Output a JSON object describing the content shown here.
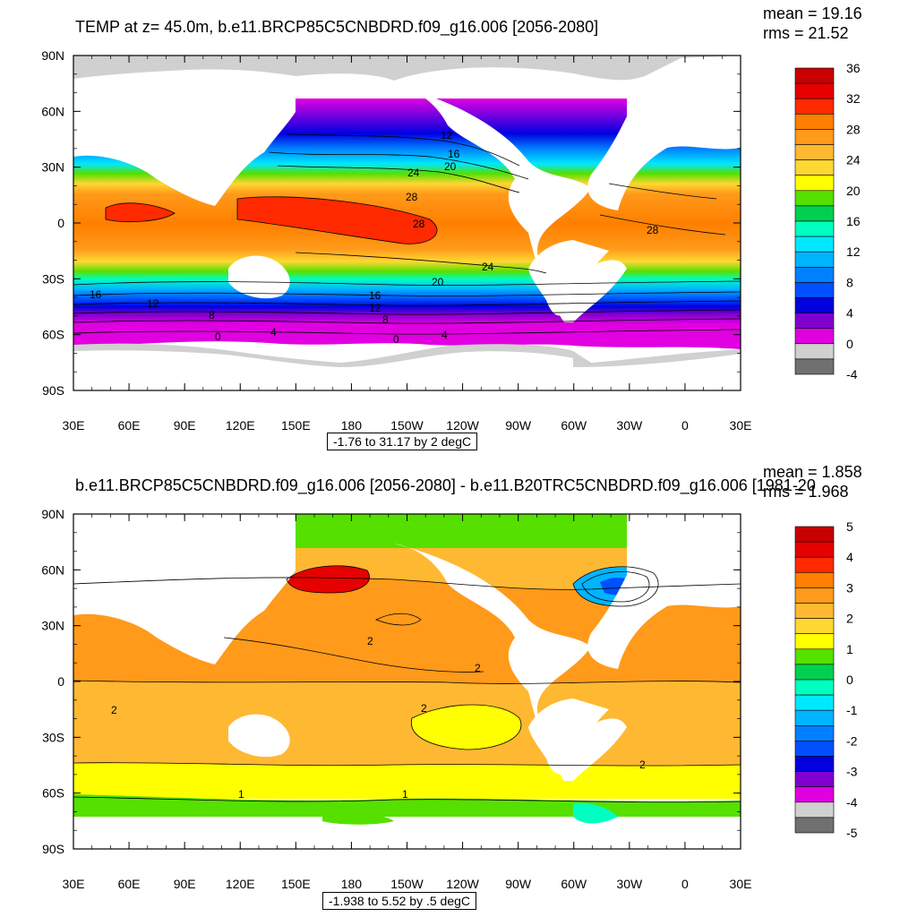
{
  "chart_data": [
    {
      "type": "heatmap",
      "title": "TEMP at z=  45.0m, b.e11.BRCP85C5CNBDRD.f09_g16.006 [2056-2080]",
      "stats": {
        "mean": "mean = 19.16",
        "rms": "rms = 21.52"
      },
      "range_label": "-1.76 to 31.17 by 2 degC",
      "x_ticks": [
        "30E",
        "60E",
        "90E",
        "120E",
        "150E",
        "180",
        "150W",
        "120W",
        "90W",
        "60W",
        "30W",
        "0",
        "30E"
      ],
      "y_ticks": [
        "90N",
        "60N",
        "30N",
        "0",
        "30S",
        "60S",
        "90S"
      ],
      "colorbar_labels": [
        "36",
        "32",
        "28",
        "24",
        "20",
        "16",
        "12",
        "8",
        "4",
        "0",
        "-4"
      ],
      "colors": [
        "#c80000",
        "#e60000",
        "#ff2a00",
        "#ff7f00",
        "#ff9a1a",
        "#ffb832",
        "#ffd732",
        "#ffff00",
        "#55e000",
        "#00d050",
        "#00ffc0",
        "#00e8ff",
        "#00b4ff",
        "#0080ff",
        "#0050ff",
        "#0000e0",
        "#8000d0",
        "#e000e0",
        "#d0d0d0",
        "#707070"
      ],
      "contour_labels": [
        "12",
        "16",
        "20",
        "24",
        "28",
        "28",
        "28",
        "24",
        "20",
        "16",
        "16",
        "12",
        "12",
        "8",
        "8",
        "4",
        "0",
        "0",
        "4"
      ]
    },
    {
      "type": "heatmap",
      "title": "b.e11.BRCP85C5CNBDRD.f09_g16.006 [2056-2080] - b.e11.B20TRC5CNBDRD.f09_g16.006 [1981-20",
      "stats": {
        "mean": "mean = 1.858",
        "rms": "rms = 1.968"
      },
      "range_label": "-1.938 to 5.52 by .5 degC",
      "x_ticks": [
        "30E",
        "60E",
        "90E",
        "120E",
        "150E",
        "180",
        "150W",
        "120W",
        "90W",
        "60W",
        "30W",
        "0",
        "30E"
      ],
      "y_ticks": [
        "90N",
        "60N",
        "30N",
        "0",
        "30S",
        "60S",
        "90S"
      ],
      "colorbar_labels": [
        "5",
        "4",
        "3",
        "2",
        "1",
        "0",
        "-1",
        "-2",
        "-3",
        "-4",
        "-5"
      ],
      "colors": [
        "#c80000",
        "#e60000",
        "#ff2a00",
        "#ff7f00",
        "#ff9a1a",
        "#ffb832",
        "#ffd732",
        "#ffff00",
        "#55e000",
        "#00d050",
        "#00ffc0",
        "#00e8ff",
        "#00b4ff",
        "#0080ff",
        "#0050ff",
        "#0000e0",
        "#8000d0",
        "#e000e0",
        "#d0d0d0",
        "#707070"
      ],
      "contour_labels": [
        "2",
        "2",
        "2",
        "2",
        "2",
        "1",
        "1"
      ]
    }
  ]
}
